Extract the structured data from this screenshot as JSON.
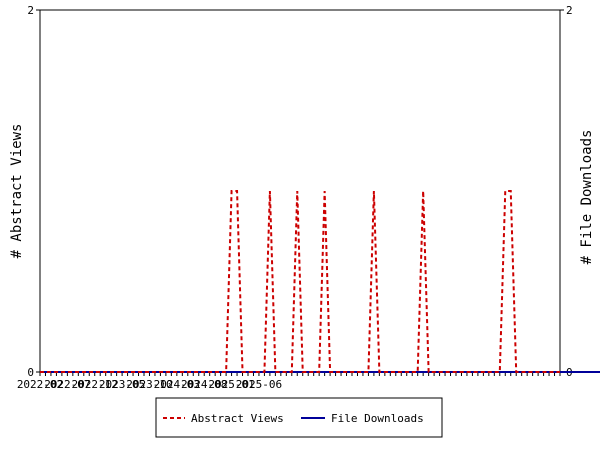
{
  "chart_data": {
    "type": "line",
    "x_tick_labels": [
      "2022-02",
      "2022-07",
      "2022-12",
      "2023-05",
      "2023-10",
      "2024-03",
      "2024-08",
      "2025-01",
      "2025-06"
    ],
    "y_left": {
      "label": "# Abstract Views",
      "ylim": [
        0,
        2
      ],
      "ticks": [
        "0",
        "2"
      ]
    },
    "y_right": {
      "label": "# File Downloads",
      "ylim": [
        0,
        2
      ],
      "ticks": [
        "0",
        "2"
      ]
    },
    "legend_position": "bottom",
    "series": [
      {
        "name": "Abstract Views",
        "color": "#cc0000",
        "style": "dashed",
        "axis": "left",
        "values": [
          0,
          0,
          0,
          0,
          0,
          0,
          0,
          0,
          0,
          0,
          0,
          0,
          0,
          0,
          0,
          0,
          0,
          0,
          0,
          0,
          0,
          0,
          0,
          0,
          0,
          0,
          0,
          0,
          0,
          0,
          0,
          0,
          0,
          0,
          0,
          1,
          1,
          0,
          0,
          0,
          0,
          0,
          1,
          0,
          0,
          0,
          0,
          1,
          0,
          0,
          0,
          0,
          1,
          0,
          0,
          0,
          0,
          0,
          0,
          0,
          0,
          1,
          0,
          0,
          0,
          0,
          0,
          0,
          0,
          0,
          1,
          0,
          0,
          0,
          0,
          0,
          0,
          0,
          0,
          0,
          0,
          0,
          0,
          0,
          0,
          1,
          1,
          0,
          0,
          0,
          0,
          0,
          0,
          0,
          0,
          0
        ]
      },
      {
        "name": "File Downloads",
        "color": "#000099",
        "style": "solid",
        "axis": "right",
        "values": [
          0,
          0,
          0,
          0,
          0,
          0,
          0,
          0,
          0,
          0,
          0,
          0,
          0,
          0,
          0,
          0,
          0,
          0,
          0,
          0,
          0,
          0,
          0,
          0,
          0,
          0,
          0,
          0,
          0,
          0,
          0,
          0,
          0,
          0,
          0,
          0,
          0,
          0,
          0,
          0,
          0,
          0,
          0,
          0,
          0,
          0,
          0,
          0,
          0,
          0,
          0,
          0,
          0,
          0,
          0,
          0,
          0,
          0,
          0,
          0,
          0,
          0,
          0,
          0,
          0,
          0,
          0,
          0,
          0,
          0,
          0,
          0,
          0,
          0,
          0,
          0,
          0,
          0,
          0,
          0,
          0,
          0,
          0,
          0,
          0,
          0,
          0,
          0,
          0,
          0,
          0,
          0,
          0,
          0,
          0,
          0,
          0,
          0,
          0,
          0,
          0,
          0,
          0,
          0,
          0
        ]
      }
    ]
  }
}
